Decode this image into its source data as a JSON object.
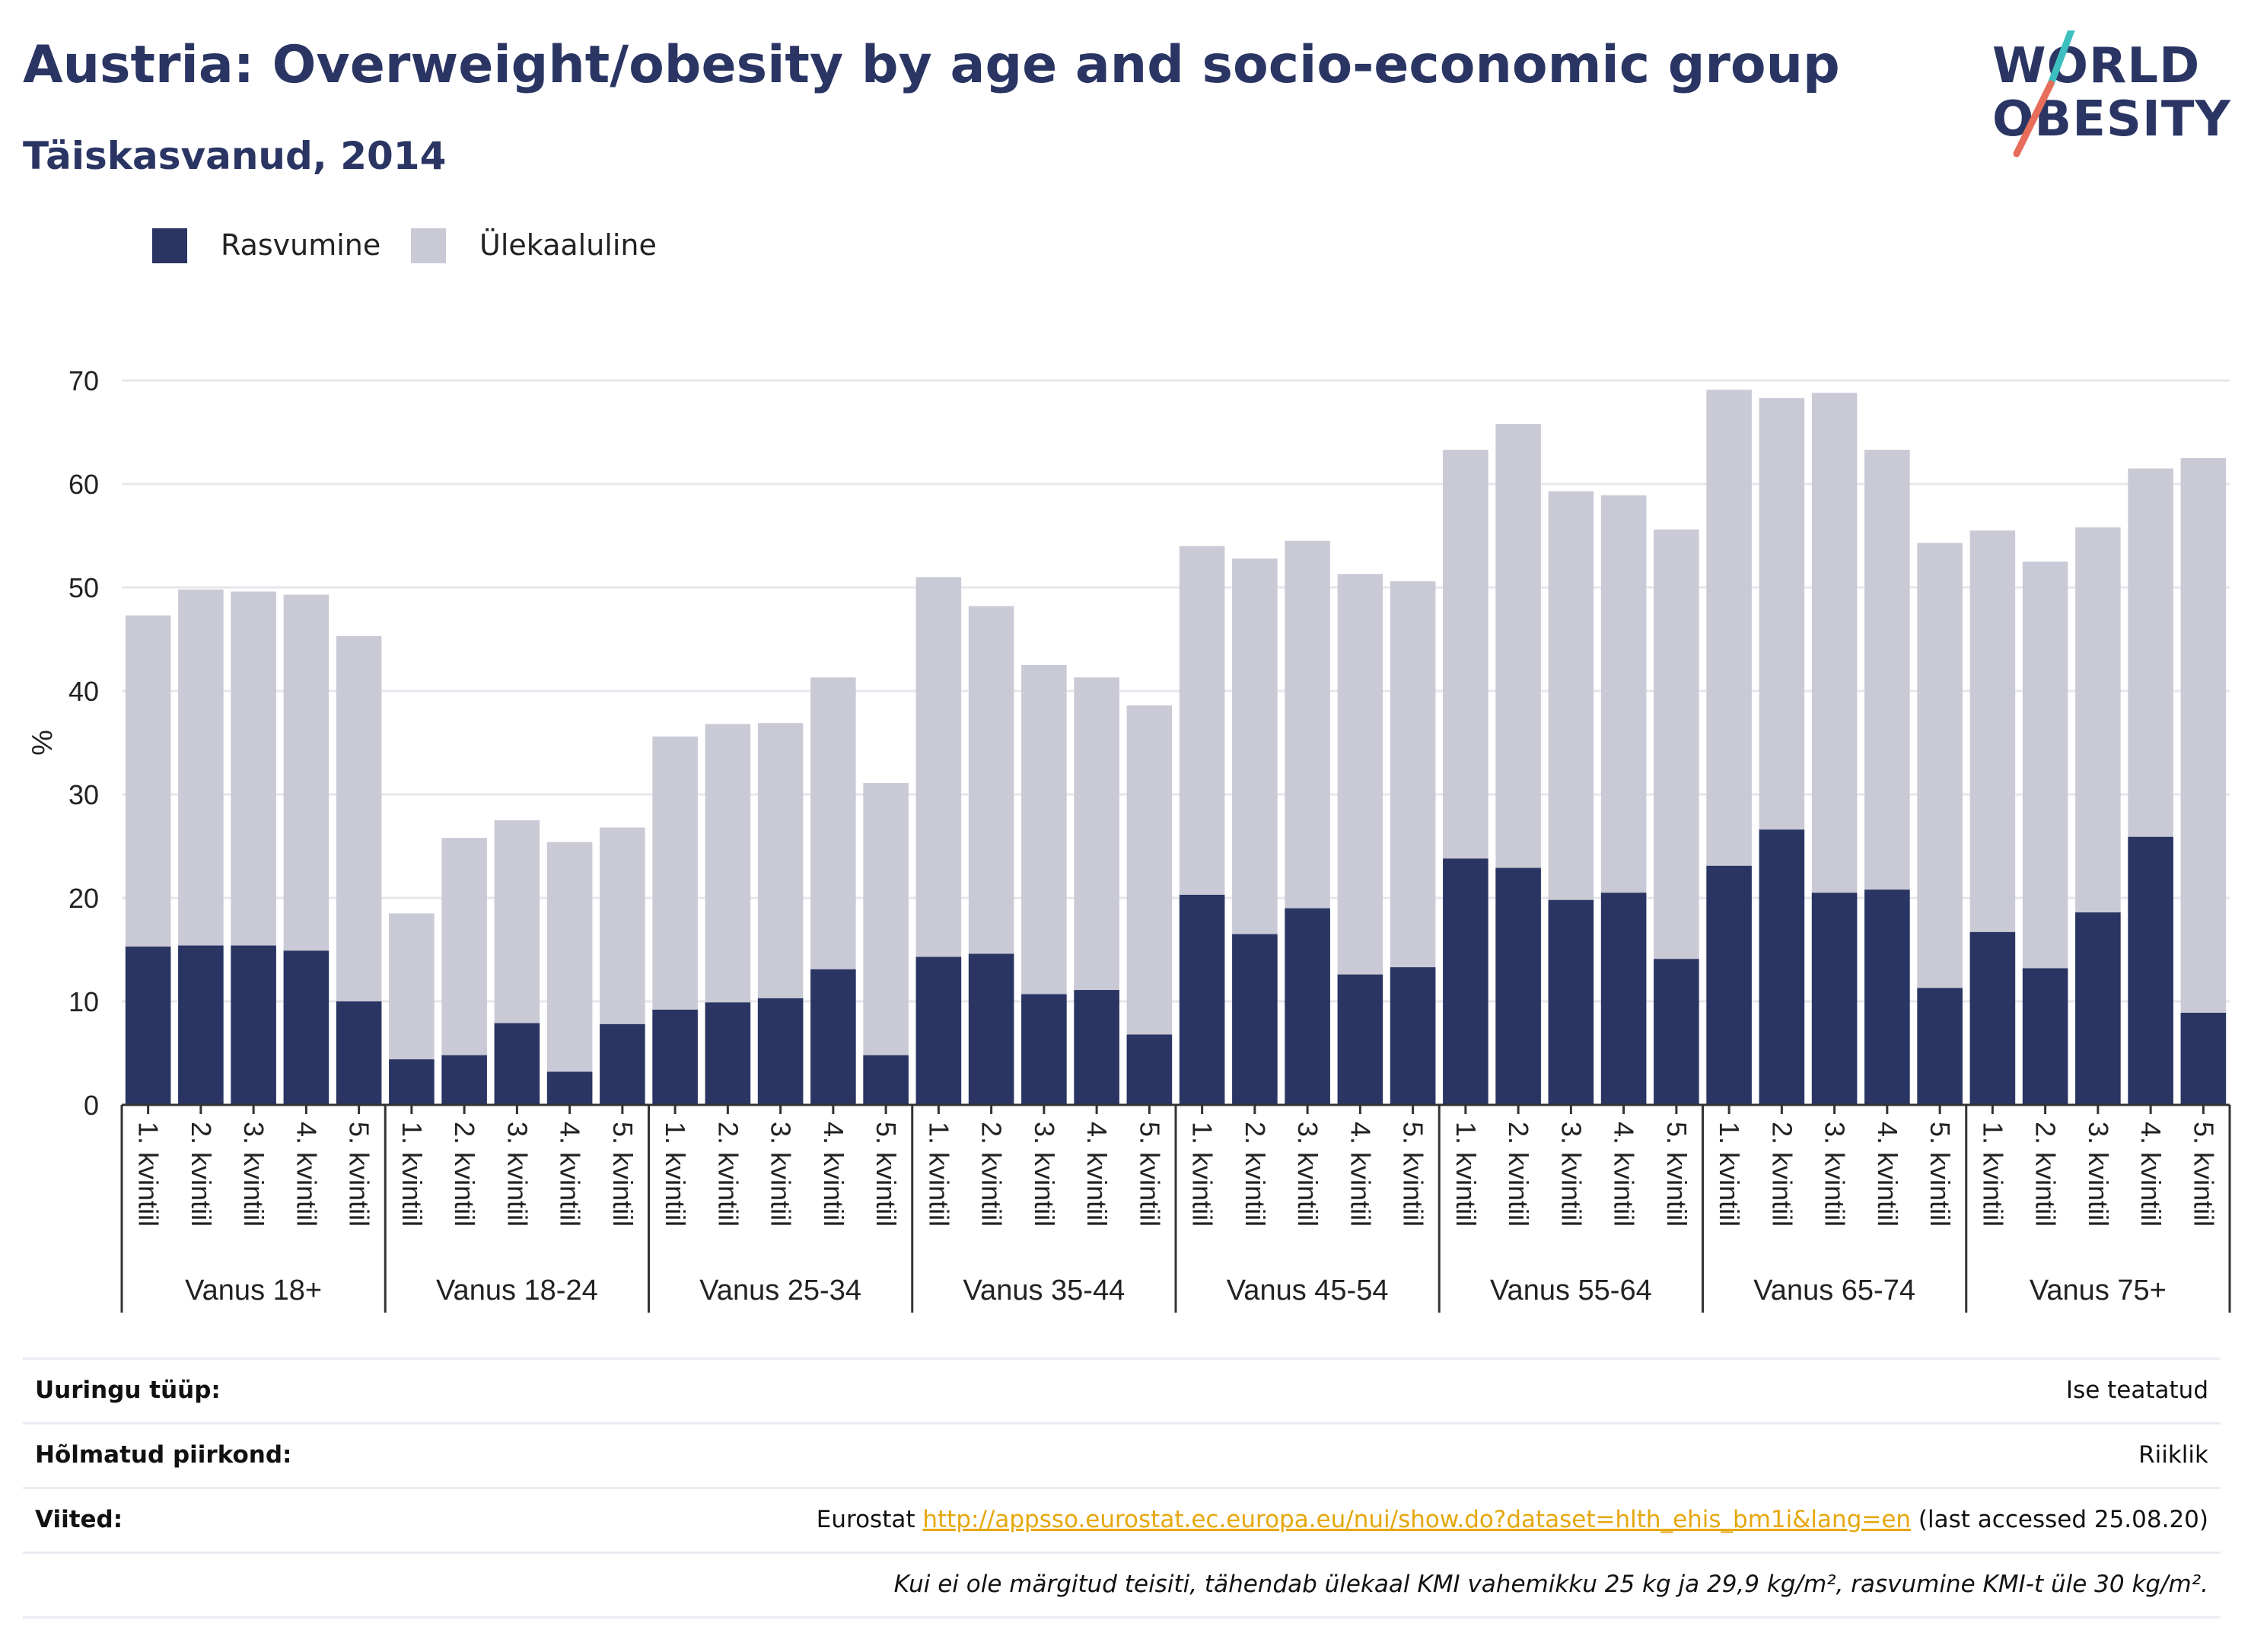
{
  "header": {
    "title": "Austria: Overweight/obesity by age and socio-economic group",
    "subtitle": "Täiskasvanud, 2014"
  },
  "logo": {
    "line1": "WORLD",
    "line2": "OBESITY"
  },
  "legend": {
    "items": [
      {
        "label": "Rasvumine",
        "color": "#2a3563"
      },
      {
        "label": "Ülekaaluline",
        "color": "#c9cad6"
      }
    ]
  },
  "chart_data": {
    "type": "bar",
    "stacked": false,
    "overlaid": true,
    "ylabel": "%",
    "ylim": [
      0,
      70
    ],
    "yticks": [
      0,
      10,
      20,
      30,
      40,
      50,
      60,
      70
    ],
    "grid": true,
    "legend_position": "top-left",
    "groups": [
      "Vanus 18+",
      "Vanus 18-24",
      "Vanus 25-34",
      "Vanus 35-44",
      "Vanus 45-54",
      "Vanus 55-64",
      "Vanus 65-74",
      "Vanus 75+"
    ],
    "categories": [
      "1. kvintiil",
      "2. kvintiil",
      "3. kvintiil",
      "4. kvintiil",
      "5. kvintiil"
    ],
    "series": [
      {
        "name": "Ülekaaluline",
        "color": "#c9cad6",
        "values": [
          [
            47.3,
            49.8,
            49.6,
            49.3,
            45.3
          ],
          [
            18.5,
            25.8,
            27.5,
            25.4,
            26.8
          ],
          [
            35.6,
            36.8,
            36.9,
            41.3,
            31.1
          ],
          [
            51.0,
            48.2,
            42.5,
            41.3,
            38.6
          ],
          [
            54.0,
            52.8,
            54.5,
            51.3,
            50.6
          ],
          [
            63.3,
            65.8,
            59.3,
            58.9,
            55.6
          ],
          [
            69.1,
            68.3,
            68.8,
            63.3,
            54.3
          ],
          [
            55.5,
            52.5,
            55.8,
            61.5,
            62.5
          ]
        ]
      },
      {
        "name": "Rasvumine",
        "color": "#2a3563",
        "values": [
          [
            15.3,
            15.4,
            15.4,
            14.9,
            10.0
          ],
          [
            4.4,
            4.8,
            7.9,
            3.2,
            7.8
          ],
          [
            9.2,
            9.9,
            10.3,
            13.1,
            4.8
          ],
          [
            14.3,
            14.6,
            10.7,
            11.1,
            6.8
          ],
          [
            20.3,
            16.5,
            19.0,
            12.6,
            13.3
          ],
          [
            23.8,
            22.9,
            19.8,
            20.5,
            14.1
          ],
          [
            23.1,
            26.6,
            20.5,
            20.8,
            11.3
          ],
          [
            16.7,
            13.2,
            18.6,
            25.9,
            8.9
          ]
        ]
      }
    ]
  },
  "meta": {
    "survey_type_label": "Uuringu tüüp:",
    "survey_type_value": "Ise teatatud",
    "region_label": "Hõlmatud piirkond:",
    "region_value": "Riiklik",
    "refs_label": "Viited:",
    "refs_source": "Eurostat",
    "refs_link": "http://appsso.eurostat.ec.europa.eu/nui/show.do?dataset=hlth_ehis_bm1i&lang=en",
    "refs_accessed": "(last accessed 25.08.20)",
    "note": "Kui ei ole märgitud teisiti, tähendab ülekaal KMI vahemikku 25 kg ja 29,9 kg/m², rasvumine KMI-t üle 30 kg/m²."
  }
}
